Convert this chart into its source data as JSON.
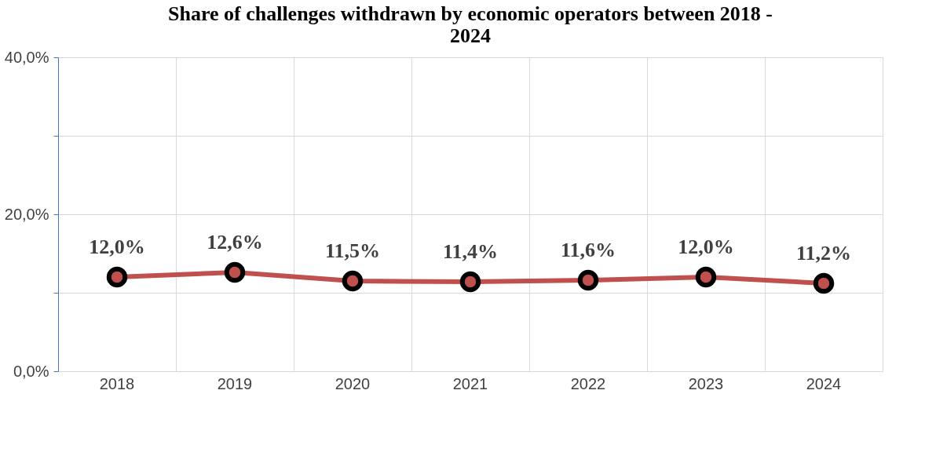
{
  "chart_data": {
    "type": "line",
    "title": "Share of challenges withdrawn by economic operators between 2018 - 2024",
    "categories": [
      "2018",
      "2019",
      "2020",
      "2021",
      "2022",
      "2023",
      "2024"
    ],
    "series": [
      {
        "color": "#c0504d",
        "values": [
          12.0,
          12.6,
          11.5,
          11.4,
          11.6,
          12.0,
          11.2
        ],
        "value_labels": [
          "12,0%",
          "12,6%",
          "11,5%",
          "11,4%",
          "11,6%",
          "12,0%",
          "11,2%"
        ]
      }
    ],
    "ylim": [
      0,
      40
    ],
    "yticks": [
      {
        "value": 0,
        "label": "0,0%"
      },
      {
        "value": 10,
        "label": null
      },
      {
        "value": 20,
        "label": "20,0%"
      },
      {
        "value": 30,
        "label": null
      },
      {
        "value": 40,
        "label": "40,0%"
      }
    ],
    "grid": true,
    "marker": "circle",
    "line_style": "solid",
    "legend": false
  }
}
